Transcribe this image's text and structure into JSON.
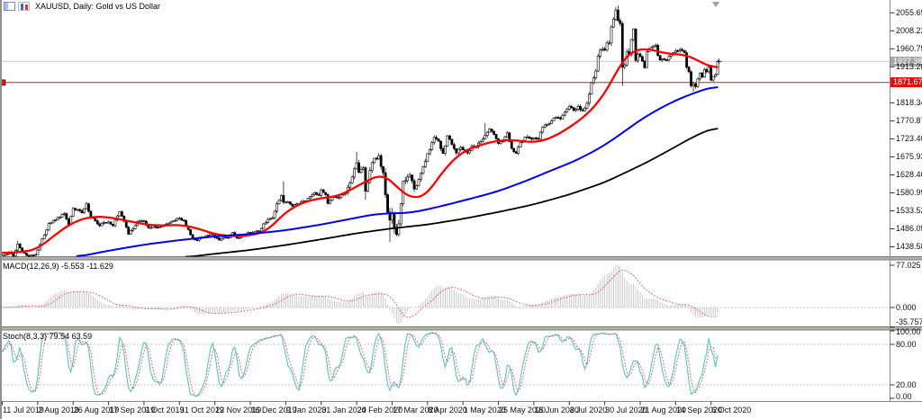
{
  "window": {
    "title": "XAUUSD, Daily: Gold vs US Dollar",
    "icons": [
      "window-icon",
      "candlestick-chart-icon"
    ]
  },
  "price_axis": {
    "ticks": [
      "2055.69",
      "2008.22",
      "1960.75",
      "1913.28",
      "1818.34",
      "1770.87",
      "1723.40",
      "1675.93",
      "1628.46",
      "1580.99",
      "1533.52",
      "1486.05",
      "1438.58"
    ],
    "tick_values": [
      2055.69,
      2008.22,
      1960.75,
      1913.28,
      1818.34,
      1770.87,
      1723.4,
      1675.93,
      1628.46,
      1580.99,
      1533.52,
      1486.05,
      1438.58
    ],
    "last_price_tag": {
      "label": "1927.38",
      "value": 1927.38,
      "bg": "#a6a6a6",
      "line_color": "#c9c9c9"
    },
    "bid_line_tag": {
      "label": "1871.67",
      "value": 1871.67,
      "bg": "#e01010",
      "line_color": "#e81414"
    }
  },
  "time_axis": {
    "labels": [
      "11 Jul 2019",
      "2 Aug 2019",
      "26 Aug 2019",
      "17 Sep 2019",
      "9 Oct 2019",
      "31 Oct 2019",
      "22 Nov 2019",
      "16 Dec 2019",
      "9 Jan 2020",
      "31 Jan 2020",
      "24 Feb 2020",
      "17 Mar 2020",
      "8 Apr 2020",
      "1 May 2020",
      "25 May 2020",
      "16 Jun 2020",
      "8 Jul 2020",
      "30 Jul 2020",
      "21 Aug 2020",
      "14 Sep 2020",
      "6 Oct 2020"
    ],
    "bars_per_label": 16
  },
  "chart_data": {
    "type": "candlestick",
    "symbol": "XAUUSD",
    "timeframe": "Daily",
    "description": "Gold vs US Dollar",
    "bars_total": 324,
    "candle_colors": {
      "bull": "#ffffff",
      "bear": "#000000",
      "outline": "#000000"
    },
    "close_anchors": [
      [
        0,
        1416
      ],
      [
        3,
        1425
      ],
      [
        5,
        1414
      ],
      [
        7,
        1446
      ],
      [
        9,
        1426
      ],
      [
        12,
        1414
      ],
      [
        15,
        1418
      ],
      [
        17,
        1445
      ],
      [
        19,
        1470
      ],
      [
        21,
        1500
      ],
      [
        24,
        1510
      ],
      [
        26,
        1517
      ],
      [
        28,
        1526
      ],
      [
        30,
        1497
      ],
      [
        32,
        1540
      ],
      [
        34,
        1537
      ],
      [
        36,
        1528
      ],
      [
        38,
        1552
      ],
      [
        40,
        1516
      ],
      [
        42,
        1507
      ],
      [
        44,
        1494
      ],
      [
        46,
        1503
      ],
      [
        48,
        1504
      ],
      [
        50,
        1494
      ],
      [
        52,
        1520
      ],
      [
        53,
        1531
      ],
      [
        55,
        1506
      ],
      [
        57,
        1472
      ],
      [
        59,
        1486
      ],
      [
        61,
        1505
      ],
      [
        64,
        1506
      ],
      [
        66,
        1489
      ],
      [
        68,
        1494
      ],
      [
        70,
        1490
      ],
      [
        73,
        1495
      ],
      [
        76,
        1504
      ],
      [
        78,
        1508
      ],
      [
        80,
        1514
      ],
      [
        82,
        1508
      ],
      [
        84,
        1484
      ],
      [
        86,
        1459
      ],
      [
        88,
        1456
      ],
      [
        90,
        1464
      ],
      [
        92,
        1468
      ],
      [
        94,
        1474
      ],
      [
        96,
        1463
      ],
      [
        98,
        1456
      ],
      [
        100,
        1464
      ],
      [
        102,
        1462
      ],
      [
        104,
        1476
      ],
      [
        106,
        1461
      ],
      [
        108,
        1467
      ],
      [
        110,
        1472
      ],
      [
        112,
        1476
      ],
      [
        114,
        1478
      ],
      [
        116,
        1480
      ],
      [
        118,
        1499
      ],
      [
        120,
        1511
      ],
      [
        122,
        1515
      ],
      [
        124,
        1552
      ],
      [
        126,
        1574
      ],
      [
        127,
        1556
      ],
      [
        129,
        1557
      ],
      [
        131,
        1546
      ],
      [
        133,
        1552
      ],
      [
        135,
        1557
      ],
      [
        137,
        1559
      ],
      [
        139,
        1571
      ],
      [
        141,
        1581
      ],
      [
        143,
        1574
      ],
      [
        144,
        1589
      ],
      [
        146,
        1576
      ],
      [
        147,
        1553
      ],
      [
        149,
        1570
      ],
      [
        151,
        1568
      ],
      [
        153,
        1576
      ],
      [
        155,
        1580
      ],
      [
        157,
        1607
      ],
      [
        159,
        1644
      ],
      [
        160,
        1660
      ],
      [
        161,
        1635
      ],
      [
        163,
        1647
      ],
      [
        164,
        1585
      ],
      [
        166,
        1640
      ],
      [
        168,
        1672
      ],
      [
        170,
        1679
      ],
      [
        171,
        1650
      ],
      [
        172,
        1634
      ],
      [
        173,
        1576
      ],
      [
        174,
        1530
      ],
      [
        175,
        1509
      ],
      [
        176,
        1528
      ],
      [
        177,
        1486
      ],
      [
        178,
        1471
      ],
      [
        179,
        1499
      ],
      [
        180,
        1552
      ],
      [
        181,
        1611
      ],
      [
        182,
        1613
      ],
      [
        184,
        1628
      ],
      [
        186,
        1591
      ],
      [
        188,
        1616
      ],
      [
        190,
        1649
      ],
      [
        192,
        1684
      ],
      [
        194,
        1714
      ],
      [
        195,
        1727
      ],
      [
        197,
        1717
      ],
      [
        199,
        1685
      ],
      [
        201,
        1731
      ],
      [
        203,
        1708
      ],
      [
        205,
        1686
      ],
      [
        207,
        1701
      ],
      [
        210,
        1686
      ],
      [
        212,
        1704
      ],
      [
        214,
        1702
      ],
      [
        216,
        1716
      ],
      [
        218,
        1732
      ],
      [
        220,
        1749
      ],
      [
        222,
        1735
      ],
      [
        224,
        1711
      ],
      [
        226,
        1718
      ],
      [
        228,
        1739
      ],
      [
        230,
        1698
      ],
      [
        232,
        1685
      ],
      [
        234,
        1714
      ],
      [
        236,
        1728
      ],
      [
        238,
        1725
      ],
      [
        240,
        1726
      ],
      [
        242,
        1722
      ],
      [
        244,
        1754
      ],
      [
        246,
        1761
      ],
      [
        248,
        1771
      ],
      [
        250,
        1780
      ],
      [
        252,
        1776
      ],
      [
        254,
        1794
      ],
      [
        256,
        1809
      ],
      [
        258,
        1798
      ],
      [
        260,
        1809
      ],
      [
        262,
        1797
      ],
      [
        264,
        1817
      ],
      [
        266,
        1871
      ],
      [
        268,
        1902
      ],
      [
        269,
        1941
      ],
      [
        270,
        1958
      ],
      [
        272,
        1957
      ],
      [
        273,
        1976
      ],
      [
        274,
        1976
      ],
      [
        275,
        2018
      ],
      [
        276,
        2039
      ],
      [
        277,
        2063
      ],
      [
        278,
        2035
      ],
      [
        279,
        2027
      ],
      [
        280,
        1912
      ],
      [
        281,
        1918
      ],
      [
        282,
        1953
      ],
      [
        283,
        1945
      ],
      [
        284,
        1985
      ],
      [
        285,
        2013
      ],
      [
        286,
        1930
      ],
      [
        287,
        1947
      ],
      [
        288,
        1940
      ],
      [
        289,
        1928
      ],
      [
        290,
        1911
      ],
      [
        291,
        1953
      ],
      [
        293,
        1964
      ],
      [
        294,
        1968
      ],
      [
        295,
        1970
      ],
      [
        296,
        1943
      ],
      [
        297,
        1931
      ],
      [
        298,
        1934
      ],
      [
        300,
        1931
      ],
      [
        302,
        1946
      ],
      [
        304,
        1956
      ],
      [
        306,
        1959
      ],
      [
        308,
        1950
      ],
      [
        309,
        1912
      ],
      [
        310,
        1900
      ],
      [
        311,
        1863
      ],
      [
        312,
        1868
      ],
      [
        313,
        1861
      ],
      [
        314,
        1881
      ],
      [
        315,
        1897
      ],
      [
        316,
        1886
      ],
      [
        317,
        1906
      ],
      [
        318,
        1900
      ],
      [
        319,
        1913
      ],
      [
        320,
        1878
      ],
      [
        321,
        1888
      ],
      [
        322,
        1893
      ],
      [
        323,
        1927.38
      ]
    ],
    "wick_events": [
      {
        "bar": 7,
        "high": 1454
      },
      {
        "bar": 38,
        "high": 1557
      },
      {
        "bar": 127,
        "high": 1611
      },
      {
        "bar": 160,
        "high": 1689
      },
      {
        "bar": 164,
        "low": 1563
      },
      {
        "bar": 175,
        "low": 1451
      },
      {
        "bar": 177,
        "low": 1473
      },
      {
        "bar": 218,
        "high": 1765
      },
      {
        "bar": 277,
        "high": 2070
      },
      {
        "bar": 278,
        "high": 2075
      },
      {
        "bar": 280,
        "low": 1863
      },
      {
        "bar": 312,
        "low": 1848
      }
    ],
    "volatility_anchors": [
      [
        0,
        5
      ],
      [
        40,
        6
      ],
      [
        100,
        4.5
      ],
      [
        124,
        7
      ],
      [
        150,
        6
      ],
      [
        160,
        11
      ],
      [
        170,
        14
      ],
      [
        176,
        20
      ],
      [
        182,
        15
      ],
      [
        190,
        10
      ],
      [
        208,
        8
      ],
      [
        232,
        7
      ],
      [
        250,
        6.5
      ],
      [
        264,
        8
      ],
      [
        272,
        10
      ],
      [
        277,
        14
      ],
      [
        283,
        12
      ],
      [
        290,
        9
      ],
      [
        300,
        7
      ],
      [
        308,
        8
      ],
      [
        312,
        9
      ],
      [
        323,
        7
      ]
    ],
    "overlays": [
      {
        "name": "ma-fast",
        "color": "#fe0000",
        "width": 2.3,
        "anchors": [
          [
            0,
            1422
          ],
          [
            8,
            1424
          ],
          [
            16,
            1432
          ],
          [
            24,
            1470
          ],
          [
            32,
            1503
          ],
          [
            40,
            1518
          ],
          [
            48,
            1517
          ],
          [
            56,
            1508
          ],
          [
            64,
            1498
          ],
          [
            72,
            1494
          ],
          [
            80,
            1497
          ],
          [
            88,
            1488
          ],
          [
            96,
            1472
          ],
          [
            104,
            1466
          ],
          [
            112,
            1468
          ],
          [
            120,
            1481
          ],
          [
            128,
            1530
          ],
          [
            136,
            1556
          ],
          [
            144,
            1567
          ],
          [
            152,
            1572
          ],
          [
            160,
            1597
          ],
          [
            168,
            1622
          ],
          [
            172,
            1629
          ],
          [
            176,
            1613
          ],
          [
            180,
            1585
          ],
          [
            184,
            1570
          ],
          [
            188,
            1566
          ],
          [
            192,
            1577
          ],
          [
            200,
            1645
          ],
          [
            208,
            1690
          ],
          [
            216,
            1707
          ],
          [
            224,
            1719
          ],
          [
            232,
            1720
          ],
          [
            240,
            1713
          ],
          [
            248,
            1725
          ],
          [
            256,
            1752
          ],
          [
            264,
            1786
          ],
          [
            270,
            1824
          ],
          [
            276,
            1880
          ],
          [
            280,
            1930
          ],
          [
            284,
            1952
          ],
          [
            288,
            1960
          ],
          [
            292,
            1961
          ],
          [
            296,
            1954
          ],
          [
            300,
            1948
          ],
          [
            304,
            1946
          ],
          [
            308,
            1946
          ],
          [
            312,
            1937
          ],
          [
            316,
            1924
          ],
          [
            320,
            1913
          ],
          [
            323,
            1910
          ]
        ]
      },
      {
        "name": "ma-medium",
        "color": "#0000f0",
        "width": 2.0,
        "anchors": [
          [
            34,
            1412
          ],
          [
            48,
            1428
          ],
          [
            64,
            1444
          ],
          [
            80,
            1456
          ],
          [
            96,
            1466
          ],
          [
            112,
            1472
          ],
          [
            128,
            1482
          ],
          [
            144,
            1497
          ],
          [
            160,
            1515
          ],
          [
            168,
            1524
          ],
          [
            176,
            1527
          ],
          [
            184,
            1528
          ],
          [
            192,
            1537
          ],
          [
            200,
            1548
          ],
          [
            208,
            1560
          ],
          [
            216,
            1572
          ],
          [
            224,
            1585
          ],
          [
            232,
            1602
          ],
          [
            240,
            1620
          ],
          [
            248,
            1640
          ],
          [
            256,
            1658
          ],
          [
            264,
            1680
          ],
          [
            272,
            1706
          ],
          [
            280,
            1738
          ],
          [
            288,
            1772
          ],
          [
            296,
            1800
          ],
          [
            304,
            1824
          ],
          [
            312,
            1843
          ],
          [
            318,
            1855
          ],
          [
            323,
            1862
          ]
        ]
      },
      {
        "name": "ma-slow",
        "color": "#000000",
        "width": 1.8,
        "anchors": [
          [
            83,
            1411
          ],
          [
            96,
            1420
          ],
          [
            112,
            1430
          ],
          [
            128,
            1443
          ],
          [
            144,
            1458
          ],
          [
            160,
            1474
          ],
          [
            176,
            1487
          ],
          [
            192,
            1497
          ],
          [
            208,
            1512
          ],
          [
            224,
            1530
          ],
          [
            240,
            1550
          ],
          [
            256,
            1576
          ],
          [
            272,
            1608
          ],
          [
            288,
            1652
          ],
          [
            296,
            1676
          ],
          [
            304,
            1702
          ],
          [
            312,
            1728
          ],
          [
            318,
            1744
          ],
          [
            323,
            1754
          ]
        ]
      }
    ],
    "indicators": [
      {
        "name": "MACD",
        "label": "MACD(12,26,9)",
        "values_text": "-5.553 -11.629",
        "params": [
          12,
          26,
          9
        ],
        "axis_ticks": [
          "77.025",
          "0.000",
          "-35.757"
        ],
        "axis_tick_values": [
          77.025,
          0,
          -35.757
        ],
        "histogram_color": "#c9c9c9",
        "signal_color": "#e06060"
      },
      {
        "name": "Stochastic",
        "label": "Stoch(8,3,3)",
        "values_text": "79.54 63.59",
        "params": [
          8,
          3,
          3
        ],
        "axis_ticks": [
          "100.00",
          "80.00",
          "20.00",
          "0.00"
        ],
        "axis_tick_values": [
          100,
          80,
          20,
          0
        ],
        "levels": [
          80,
          20
        ],
        "main_color": "#55c6c2",
        "signal_color": "#e06060"
      }
    ]
  }
}
